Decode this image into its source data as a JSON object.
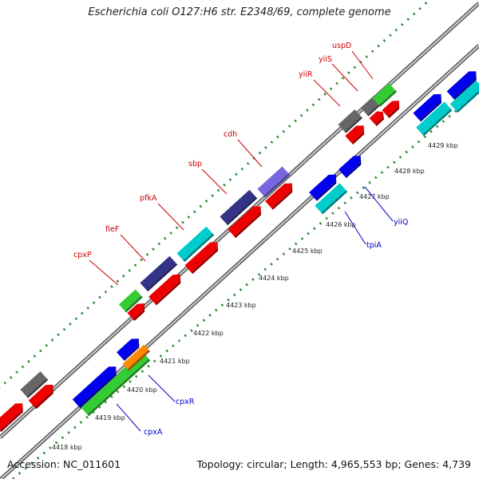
{
  "title": "Escherichia coli O127:H6 str. E2348/69, complete genome",
  "footer": {
    "accession": "Accession: NC_011601",
    "stats": "Topology: circular; Length: 4,965,553 bp; Genes: 4,739"
  },
  "colors": {
    "backbone": "#8c8c8c",
    "tick": "#2e8b2e",
    "forward_label": "#cc0000",
    "reverse_label": "#0000cc"
  },
  "ticks": [
    {
      "label": "4418 kbp"
    },
    {
      "label": "4419 kbp"
    },
    {
      "label": "4420 kbp"
    },
    {
      "label": "4421 kbp"
    },
    {
      "label": "4422 kbp"
    },
    {
      "label": "4423 kbp"
    },
    {
      "label": "4424 kbp"
    },
    {
      "label": "4425 kbp"
    },
    {
      "label": "4426 kbp"
    },
    {
      "label": "4427 kbp"
    },
    {
      "label": "4428 kbp"
    },
    {
      "label": "4429 kbp"
    }
  ],
  "gene_labels": [
    {
      "name": "cpxP",
      "strand": "forward"
    },
    {
      "name": "fieF",
      "strand": "forward"
    },
    {
      "name": "pfkA",
      "strand": "forward"
    },
    {
      "name": "sbp",
      "strand": "forward"
    },
    {
      "name": "cdh",
      "strand": "forward"
    },
    {
      "name": "yiiR",
      "strand": "forward"
    },
    {
      "name": "yiiS",
      "strand": "forward"
    },
    {
      "name": "uspD",
      "strand": "forward"
    },
    {
      "name": "cpxA",
      "strand": "reverse"
    },
    {
      "name": "cpxR",
      "strand": "reverse"
    },
    {
      "name": "tpiA",
      "strand": "reverse"
    },
    {
      "name": "yiiQ",
      "strand": "reverse"
    }
  ]
}
